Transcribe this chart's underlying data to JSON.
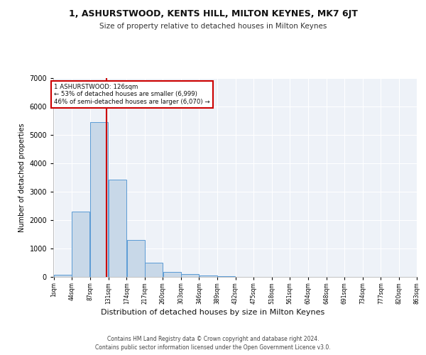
{
  "title": "1, ASHURSTWOOD, KENTS HILL, MILTON KEYNES, MK7 6JT",
  "subtitle": "Size of property relative to detached houses in Milton Keynes",
  "xlabel": "Distribution of detached houses by size in Milton Keynes",
  "ylabel": "Number of detached properties",
  "bar_color": "#c8d8e8",
  "bar_edge_color": "#5b9bd5",
  "background_color": "#eef2f8",
  "grid_color": "#ffffff",
  "property_size": 126,
  "property_line_color": "#cc0000",
  "annotation_line1": "1 ASHURSTWOOD: 126sqm",
  "annotation_line2": "← 53% of detached houses are smaller (6,999)",
  "annotation_line3": "46% of semi-detached houses are larger (6,070) →",
  "annotation_box_color": "#cc0000",
  "footer_line1": "Contains HM Land Registry data © Crown copyright and database right 2024.",
  "footer_line2": "Contains public sector information licensed under the Open Government Licence v3.0.",
  "bin_edges": [
    1,
    44,
    87,
    131,
    174,
    217,
    260,
    303,
    346,
    389,
    432,
    475,
    518,
    561,
    604,
    648,
    691,
    734,
    777,
    820,
    863
  ],
  "bin_values": [
    75,
    2300,
    5450,
    3430,
    1290,
    490,
    170,
    90,
    45,
    15,
    10,
    5,
    3,
    2,
    1,
    1,
    1,
    0,
    0,
    0
  ],
  "ylim": [
    0,
    7000
  ],
  "tick_labels": [
    "1sqm",
    "44sqm",
    "87sqm",
    "131sqm",
    "174sqm",
    "217sqm",
    "260sqm",
    "303sqm",
    "346sqm",
    "389sqm",
    "432sqm",
    "475sqm",
    "518sqm",
    "561sqm",
    "604sqm",
    "648sqm",
    "691sqm",
    "734sqm",
    "777sqm",
    "820sqm",
    "863sqm"
  ]
}
